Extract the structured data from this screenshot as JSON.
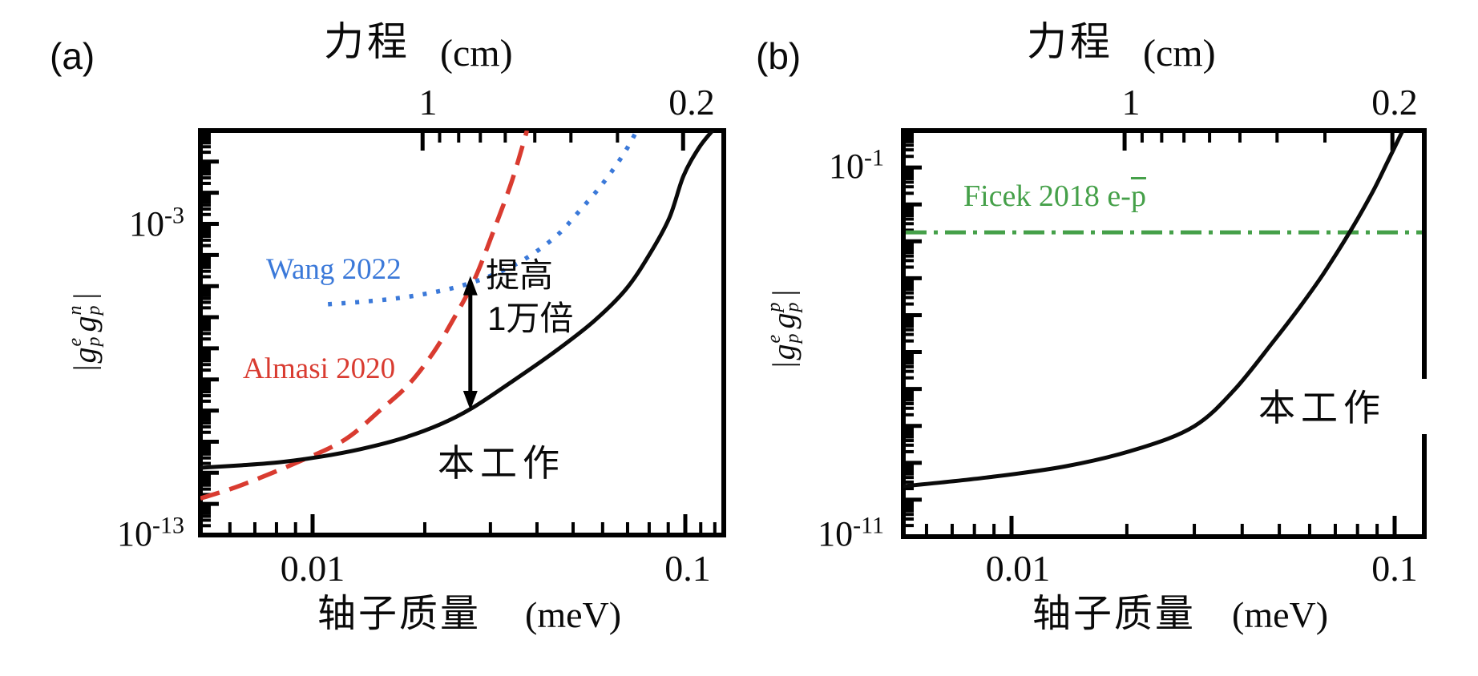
{
  "page": {
    "background": "#ffffff"
  },
  "colors": {
    "black": "#0a0a0a",
    "red": "#d93b30",
    "blue": "#3b79d9",
    "green": "#45a049"
  },
  "panels": [
    {
      "tag": "(a)",
      "top_axis_title": {
        "cjk": "力程",
        "unit": "(cm)"
      },
      "top_tick_labels": [
        "1",
        "0.2"
      ],
      "x_axis_title": {
        "cjk": "轴子质量",
        "unit": "(meV)"
      },
      "x_tick_labels": [
        "0.01",
        "0.1"
      ],
      "y_tick_labels": [
        {
          "base": "10",
          "exp": "-3"
        },
        {
          "base": "10",
          "exp": "-13"
        }
      ],
      "y_axis_label": {
        "left_bar": "|",
        "g1": "g",
        "sup1": "e",
        "sub1": "p",
        "g2": "g",
        "sup2": "n",
        "sub2": "p",
        "right_bar": "|"
      },
      "curve_labels": {
        "wang": "Wang 2022",
        "almasi": "Almasi 2020",
        "this_work": "本工作"
      },
      "annotation": {
        "line1": "提高",
        "line2": "1万倍"
      }
    },
    {
      "tag": "(b)",
      "top_axis_title": {
        "cjk": "力程",
        "unit": "(cm)"
      },
      "top_tick_labels": [
        "1",
        "0.2"
      ],
      "x_axis_title": {
        "cjk": "轴子质量",
        "unit": "(meV)"
      },
      "x_tick_labels": [
        "0.01",
        "0.1"
      ],
      "y_tick_labels": [
        {
          "base": "10",
          "exp": "-1"
        },
        {
          "base": "10",
          "exp": "-11"
        }
      ],
      "y_axis_label": {
        "left_bar": "|",
        "g1": "g",
        "sup1": "e",
        "sub1": "p",
        "g2": "g",
        "sup2": "p",
        "sub2": "p",
        "right_bar": "|"
      },
      "curve_labels": {
        "ficek_prefix": "Ficek 2018 e-",
        "ficek_pbar": "p",
        "this_work": "本工作"
      }
    }
  ],
  "chart_data": [
    {
      "id": "a",
      "type": "line",
      "title": "力程 (cm)",
      "xlabel": "轴子质量 (meV)",
      "ylabel": "|g_p^e g_p^n|",
      "x_axis": {
        "scale": "log",
        "min": 0.005,
        "max": 0.127,
        "major": [
          0.01,
          0.1
        ],
        "minor": [
          0.006,
          0.007,
          0.008,
          0.009,
          0.02,
          0.03,
          0.04,
          0.05,
          0.06,
          0.07,
          0.08,
          0.09,
          0.11,
          0.12
        ]
      },
      "top_axis": {
        "unit": "cm",
        "major_mass": [
          0.01973,
          0.09865
        ],
        "major_labels": [
          "1",
          "0.2"
        ],
        "minor_mass": [
          0.02192,
          0.02466,
          0.02819,
          0.03288,
          0.03946,
          0.04933,
          0.06577
        ]
      },
      "y_axis": {
        "scale": "log",
        "min": 1e-13,
        "max": 1.0,
        "labeled_decades": [
          -3,
          -13
        ]
      },
      "grid": false,
      "series": [
        {
          "name": "Almasi 2020",
          "style": "dashed",
          "color": "#d93b30",
          "points": [
            [
              0.005,
              1.5e-12
            ],
            [
              0.0064,
              3.9e-12
            ],
            [
              0.0092,
              2.3e-11
            ],
            [
              0.0122,
              1.16e-10
            ],
            [
              0.0152,
              1.04e-09
            ],
            [
              0.0181,
              6.9e-09
            ],
            [
              0.0211,
              7.4e-08
            ],
            [
              0.0239,
              8.9e-07
            ],
            [
              0.0271,
              1.5e-05
            ],
            [
              0.0305,
              0.00054
            ],
            [
              0.0343,
              0.025
            ],
            [
              0.0376,
              1.0
            ]
          ]
        },
        {
          "name": "Wang 2022",
          "style": "dotted",
          "color": "#3b79d9",
          "points": [
            [
              0.011,
              2.6e-06
            ],
            [
              0.0134,
              3.1e-06
            ],
            [
              0.0164,
              3.9e-06
            ],
            [
              0.02,
              5.6e-06
            ],
            [
              0.0245,
              9.5e-06
            ],
            [
              0.0299,
              2.1e-05
            ],
            [
              0.0366,
              6.7e-05
            ],
            [
              0.0448,
              0.00038
            ],
            [
              0.0517,
              0.0024
            ],
            [
              0.0599,
              0.019
            ],
            [
              0.0682,
              0.17
            ],
            [
              0.0742,
              1.0
            ]
          ]
        },
        {
          "name": "本工作",
          "style": "solid",
          "color": "#0a0a0a",
          "points": [
            [
              0.005,
              1.45e-11
            ],
            [
              0.0064,
              1.74e-11
            ],
            [
              0.0082,
              2.2e-11
            ],
            [
              0.0105,
              3.3e-11
            ],
            [
              0.0134,
              5.7e-11
            ],
            [
              0.0172,
              1.23e-10
            ],
            [
              0.022,
              3.6e-10
            ],
            [
              0.0269,
              1.24e-09
            ],
            [
              0.0344,
              8.8e-09
            ],
            [
              0.0441,
              7e-08
            ],
            [
              0.0565,
              7e-07
            ],
            [
              0.069,
              7.5e-06
            ],
            [
              0.08,
              0.0001
            ],
            [
              0.0906,
              0.00156
            ],
            [
              0.0988,
              0.034
            ],
            [
              0.1086,
              0.27
            ],
            [
              0.1184,
              1.0
            ]
          ]
        }
      ],
      "annotation_arrow": {
        "mass": 0.0265,
        "v_top": 2.1e-05,
        "v_bottom": 1.04e-09,
        "meaning": "提高1万倍"
      }
    },
    {
      "id": "b",
      "type": "line",
      "title": "力程 (cm)",
      "xlabel": "轴子质量 (meV)",
      "ylabel": "|g_p^e g_p^p|",
      "x_axis": {
        "scale": "log",
        "min": 0.0052,
        "max": 0.119,
        "major": [
          0.01,
          0.1
        ],
        "minor": [
          0.006,
          0.007,
          0.008,
          0.009,
          0.02,
          0.03,
          0.04,
          0.05,
          0.06,
          0.07,
          0.08,
          0.09
        ]
      },
      "top_axis": {
        "unit": "cm",
        "major_mass": [
          0.01973,
          0.09865
        ],
        "major_labels": [
          "1",
          "0.2"
        ],
        "minor_mass": [
          0.02192,
          0.02466,
          0.02819,
          0.03288,
          0.03946,
          0.04933,
          0.06577
        ]
      },
      "y_axis": {
        "scale": "log",
        "min": 1e-11,
        "max": 1.0,
        "labeled_decades": [
          -1,
          -11
        ]
      },
      "grid": false,
      "series": [
        {
          "name": "Ficek 2018 e-p̄",
          "style": "dashdot",
          "color": "#45a049",
          "hline": 0.00175
        },
        {
          "name": "本工作",
          "style": "solid",
          "color": "#0a0a0a",
          "points": [
            [
              0.0052,
              2.3e-10
            ],
            [
              0.0086,
              4e-10
            ],
            [
              0.0139,
              8.1e-10
            ],
            [
              0.0214,
              2.4e-09
            ],
            [
              0.03,
              9.8e-09
            ],
            [
              0.0381,
              9.3e-08
            ],
            [
              0.0485,
              2.07e-06
            ],
            [
              0.0562,
              1.52e-05
            ],
            [
              0.0649,
              0.000124
            ],
            [
              0.0763,
              0.00175
            ],
            [
              0.0875,
              0.0213
            ],
            [
              0.0958,
              0.142
            ],
            [
              0.105,
              1.0
            ]
          ]
        }
      ]
    }
  ]
}
